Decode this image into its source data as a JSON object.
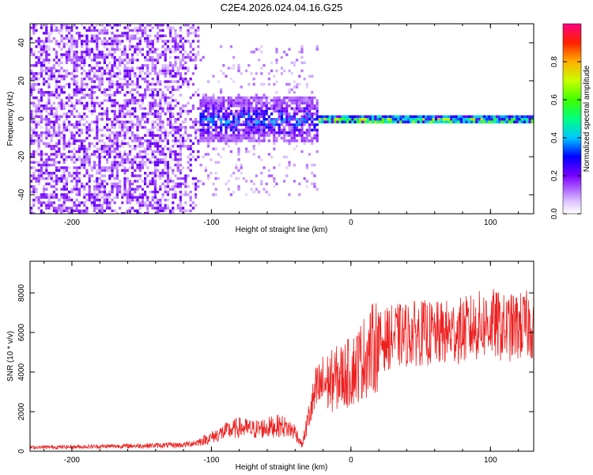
{
  "title": "C2E4.2026.024.04.16.G25",
  "chart_data": [
    {
      "type": "heatmap",
      "name": "spectrogram",
      "xlabel": "Height of straight line (km)",
      "ylabel": "Frequency (Hz)",
      "xlim": [
        -230,
        131
      ],
      "ylim": [
        -50,
        50
      ],
      "xticks": [
        -200,
        -100,
        0,
        100
      ],
      "yticks": [
        -40,
        -20,
        0,
        20,
        40
      ],
      "colorbar": {
        "label": "Normalized spectral amplitude",
        "range": [
          0.0,
          1.0
        ],
        "ticks": [
          0.0,
          0.2,
          0.4,
          0.6,
          0.8
        ],
        "tick_labels": [
          "0.0",
          "0.2",
          "0.4",
          "0.6",
          "0.8"
        ]
      },
      "description_regions": [
        {
          "x_range": [
            -230,
            -100
          ],
          "freq_spread": 50,
          "amplitude": [
            0.0,
            0.2
          ]
        },
        {
          "x_range": [
            -110,
            -25
          ],
          "freq_spread": 12,
          "amplitude": [
            0.1,
            0.45
          ]
        },
        {
          "x_range": [
            -25,
            131
          ],
          "freq_spread": 3,
          "amplitude": [
            0.2,
            0.9
          ]
        }
      ]
    },
    {
      "type": "line",
      "name": "snr",
      "xlabel": "Height of straight line (km)",
      "ylabel": "SNR (10 * v/v)",
      "xlim": [
        -230,
        131
      ],
      "ylim": [
        0,
        9600
      ],
      "xticks": [
        -200,
        -100,
        0,
        100
      ],
      "yticks": [
        0,
        2000,
        4000,
        6000,
        8000
      ],
      "color": "#ee2020",
      "series": [
        {
          "name": "SNR",
          "x": [
            -230,
            -200,
            -150,
            -120,
            -110,
            -100,
            -90,
            -80,
            -70,
            -60,
            -50,
            -40,
            -35,
            -30,
            -25,
            -20,
            -15,
            -10,
            0,
            10,
            20,
            30,
            40,
            50,
            60,
            70,
            80,
            90,
            100,
            110,
            120,
            131
          ],
          "values": [
            200,
            220,
            280,
            320,
            450,
            700,
            1000,
            1200,
            1100,
            1200,
            1300,
            1000,
            300,
            1800,
            3000,
            3400,
            3500,
            3700,
            4000,
            4800,
            5500,
            5800,
            5900,
            6000,
            5900,
            6000,
            6100,
            6300,
            6500,
            6200,
            6300,
            6400
          ]
        }
      ]
    }
  ]
}
